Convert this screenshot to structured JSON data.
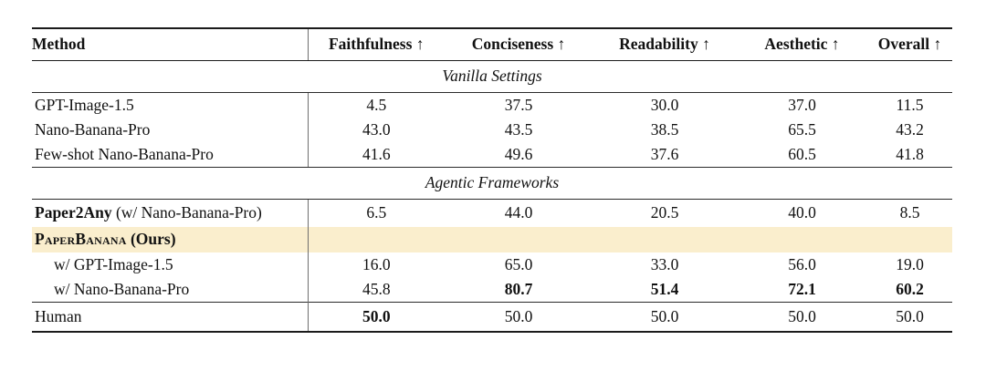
{
  "colors": {
    "highlight_row_background": "#faeecd",
    "rule_color": "#1b1b1b",
    "divider_color": "#6e6e6e",
    "text_color": "#111111"
  },
  "table": {
    "headers": {
      "method": "Method",
      "faithfulness": "Faithfulness ↑",
      "conciseness": "Conciseness ↑",
      "readability": "Readability ↑",
      "aesthetic": "Aesthetic ↑",
      "overall": "Overall ↑"
    },
    "sections": {
      "vanilla": "Vanilla Settings",
      "agentic": "Agentic Frameworks"
    },
    "rows": [
      {
        "method": "GPT-Image-1.5",
        "values": [
          "4.5",
          "37.5",
          "30.0",
          "37.0",
          "11.5"
        ]
      },
      {
        "method": "Nano-Banana-Pro",
        "values": [
          "43.0",
          "43.5",
          "38.5",
          "65.5",
          "43.2"
        ]
      },
      {
        "method": "Few-shot Nano-Banana-Pro",
        "values": [
          "41.6",
          "49.6",
          "37.6",
          "60.5",
          "41.8"
        ]
      },
      {
        "method_bold": "Paper2Any",
        "method_rest": " (w/ Nano-Banana-Pro)",
        "values": [
          "6.5",
          "44.0",
          "20.5",
          "40.0",
          "8.5"
        ]
      },
      {
        "method_smallcaps": "PaperBanana",
        "method_rest_bold": " (Ours)",
        "values": [
          "",
          "",
          "",
          "",
          ""
        ]
      },
      {
        "method": "w/ GPT-Image-1.5",
        "values": [
          "16.0",
          "65.0",
          "33.0",
          "56.0",
          "19.0"
        ]
      },
      {
        "method": "w/ Nano-Banana-Pro",
        "values": [
          "45.8",
          "80.7",
          "51.4",
          "72.1",
          "60.2"
        ]
      },
      {
        "method": "Human",
        "values": [
          "50.0",
          "50.0",
          "50.0",
          "50.0",
          "50.0"
        ]
      }
    ]
  }
}
